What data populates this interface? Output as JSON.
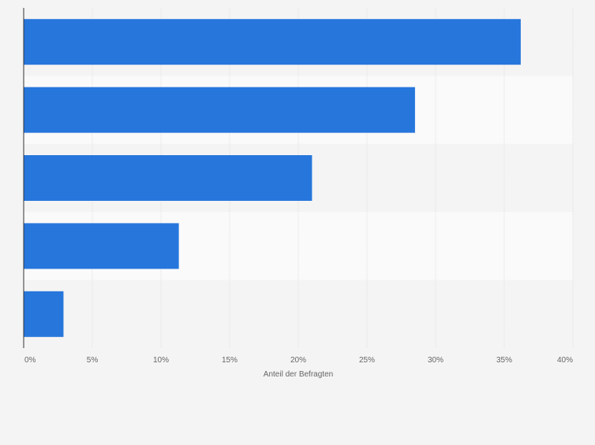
{
  "colors": {
    "page_background": "#f4f4f4",
    "bar": "#2676dc",
    "band_light": "#fafafa",
    "band_dark": "#f4f4f4",
    "gridline": "#e0e0e0",
    "axis_line": "#333333",
    "text": "#666666"
  },
  "chart_data": {
    "type": "bar",
    "orientation": "horizontal",
    "categories": [
      "",
      "",
      "",
      "",
      ""
    ],
    "values": [
      36.2,
      28.5,
      21.0,
      11.3,
      2.9
    ],
    "xlabel": "Anteil der Befragten",
    "ylabel": "",
    "xlim": [
      0,
      40
    ],
    "x_ticks": [
      0,
      5,
      10,
      15,
      20,
      25,
      30,
      35,
      40
    ],
    "x_tick_labels": [
      "0%",
      "5%",
      "10%",
      "15%",
      "20%",
      "25%",
      "30%",
      "35%",
      "40%"
    ],
    "grid": true,
    "legend": false
  }
}
